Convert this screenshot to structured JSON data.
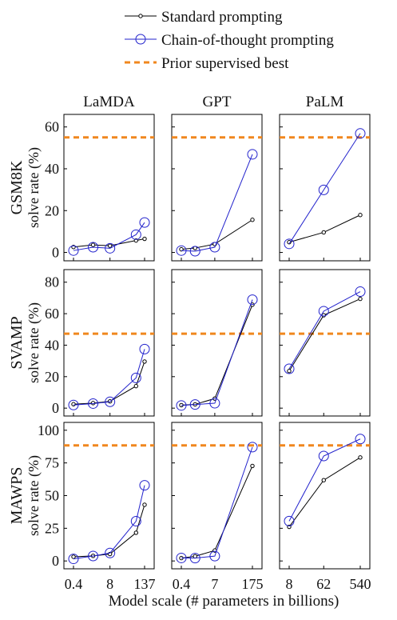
{
  "legend": {
    "items": [
      {
        "label": "Standard prompting",
        "key": "standard"
      },
      {
        "label": "Chain-of-thought prompting",
        "key": "cot"
      },
      {
        "label": "Prior supervised best",
        "key": "prior"
      }
    ]
  },
  "colors": {
    "standard": "#000000",
    "cot": "#2222cc",
    "prior": "#f0871e"
  },
  "columns": [
    "LaMDA",
    "GPT",
    "PaLM"
  ],
  "rows": [
    {
      "dataset": "GSM8K",
      "ylabel": "solve rate (%)",
      "ylim": [
        -4,
        66
      ],
      "yticks": [
        "0",
        "20",
        "40",
        "60"
      ]
    },
    {
      "dataset": "SVAMP",
      "ylabel": "solve rate (%)",
      "ylim": [
        -5,
        88
      ],
      "yticks": [
        "0",
        "20",
        "40",
        "60",
        "80"
      ]
    },
    {
      "dataset": "MAWPS",
      "ylabel": "solve rate (%)",
      "ylim": [
        -6,
        106
      ],
      "yticks": [
        "0",
        "25",
        "50",
        "75",
        "100"
      ]
    }
  ],
  "xaxis": {
    "label": "Model scale (# parameters in billions)",
    "ticks": {
      "LaMDA": [
        "0.4",
        "8",
        "137"
      ],
      "GPT": [
        "0.4",
        "7",
        "175"
      ],
      "PaLM": [
        "8",
        "62",
        "540"
      ]
    }
  },
  "chart_data": {
    "type": "line",
    "grid": "3x3 small multiples",
    "xscale": "log",
    "xlabel": "Model scale (# parameters in billions)",
    "ylabel": "solve rate (%)",
    "x": {
      "LaMDA": [
        0.4,
        2,
        8,
        68,
        137
      ],
      "GPT": [
        0.4,
        1.3,
        7,
        175
      ],
      "PaLM": [
        8,
        62,
        540
      ]
    },
    "panels": [
      {
        "row": "GSM8K",
        "column": "LaMDA",
        "prior_best": 55,
        "series": [
          {
            "name": "Standard prompting",
            "values": [
              2.6,
              3.6,
              3.2,
              5.7,
              6.5
            ]
          },
          {
            "name": "Chain-of-thought prompting",
            "values": [
              0.9,
              2.5,
              2.0,
              8.5,
              14.3
            ]
          }
        ]
      },
      {
        "row": "GSM8K",
        "column": "GPT",
        "prior_best": 55,
        "series": [
          {
            "name": "Standard prompting",
            "values": [
              1.5,
              2.1,
              4.0,
              15.6
            ]
          },
          {
            "name": "Chain-of-thought prompting",
            "values": [
              0.9,
              0.6,
              2.5,
              46.9
            ]
          }
        ]
      },
      {
        "row": "GSM8K",
        "column": "PaLM",
        "prior_best": 55,
        "series": [
          {
            "name": "Standard prompting",
            "values": [
              4.9,
              9.6,
              17.9
            ]
          },
          {
            "name": "Chain-of-thought prompting",
            "values": [
              4.1,
              29.9,
              56.9
            ]
          }
        ]
      },
      {
        "row": "SVAMP",
        "column": "LaMDA",
        "prior_best": 47.3,
        "series": [
          {
            "name": "Standard prompting",
            "values": [
              2.5,
              3.2,
              4.3,
              14.0,
              29.6
            ]
          },
          {
            "name": "Chain-of-thought prompting",
            "values": [
              2.0,
              2.9,
              4.0,
              19.2,
              37.5
            ]
          }
        ]
      },
      {
        "row": "SVAMP",
        "column": "GPT",
        "prior_best": 47.3,
        "series": [
          {
            "name": "Standard prompting",
            "values": [
              1.9,
              2.4,
              6.1,
              65.7
            ]
          },
          {
            "name": "Chain-of-thought prompting",
            "values": [
              1.7,
              2.3,
              3.1,
              68.9
            ]
          }
        ]
      },
      {
        "row": "SVAMP",
        "column": "PaLM",
        "prior_best": 47.3,
        "series": [
          {
            "name": "Standard prompting",
            "values": [
              23.6,
              59.0,
              69.4
            ]
          },
          {
            "name": "Chain-of-thought prompting",
            "values": [
              25.0,
              61.6,
              74.0
            ]
          }
        ]
      },
      {
        "row": "MAWPS",
        "column": "LaMDA",
        "prior_best": 88.4,
        "series": [
          {
            "name": "Standard prompting",
            "values": [
              3.2,
              3.9,
              5.3,
              21.6,
              43.0
            ]
          },
          {
            "name": "Chain-of-thought prompting",
            "values": [
              1.6,
              3.8,
              6.1,
              30.4,
              57.9
            ]
          }
        ]
      },
      {
        "row": "MAWPS",
        "column": "GPT",
        "prior_best": 88.4,
        "series": [
          {
            "name": "Standard prompting",
            "values": [
              2.2,
              3.6,
              8.0,
              72.7
            ]
          },
          {
            "name": "Chain-of-thought prompting",
            "values": [
              2.3,
              2.2,
              3.7,
              87.1
            ]
          }
        ]
      },
      {
        "row": "MAWPS",
        "column": "PaLM",
        "prior_best": 88.4,
        "series": [
          {
            "name": "Standard prompting",
            "values": [
              26.1,
              61.8,
              79.2
            ]
          },
          {
            "name": "Chain-of-thought prompting",
            "values": [
              30.5,
              80.3,
              93.3
            ]
          }
        ]
      }
    ]
  }
}
